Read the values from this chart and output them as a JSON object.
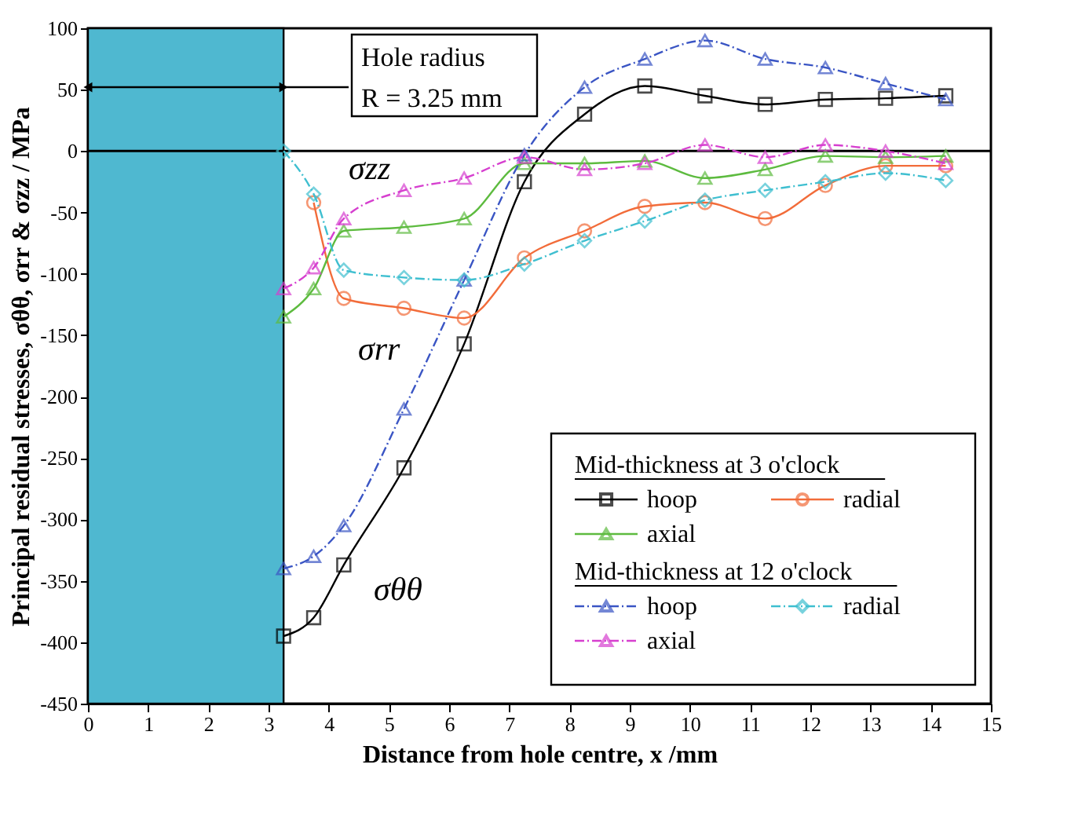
{
  "chart_data": {
    "type": "line",
    "xlabel": "Distance from hole centre, x /mm",
    "ylabel": "Principal residual stresses, σθθ, σrr & σzz / MPa",
    "x": [
      3.25,
      3.75,
      4.25,
      5.25,
      6.25,
      7.25,
      8.25,
      9.25,
      10.25,
      11.25,
      12.25,
      13.25,
      14.25
    ],
    "series": [
      {
        "name": "hoop",
        "color": "#000000",
        "marker": "square",
        "line_style": "solid",
        "values": [
          -395,
          -380,
          -337,
          -258,
          -157,
          -25,
          30,
          53,
          45,
          38,
          42,
          43,
          45
        ]
      },
      {
        "name": "radial",
        "color": "#f26c3a",
        "marker": "circle",
        "line_style": "solid",
        "values": [
          null,
          -42,
          -120,
          -128,
          -136,
          -87,
          -65,
          -45,
          -42,
          -55,
          -28,
          -12,
          -12
        ]
      },
      {
        "name": "axial",
        "color": "#5dbb3f",
        "marker": "triangle",
        "line_style": "solid",
        "values": [
          -135,
          -112,
          -65,
          -62,
          -55,
          -10,
          -10,
          -8,
          -22,
          -15,
          -4,
          -5,
          -4
        ]
      },
      {
        "name": "hoop",
        "color": "#3a55c4",
        "marker": "triangle",
        "line_style": "dashed",
        "values": [
          -340,
          -330,
          -305,
          -210,
          -105,
          -3,
          52,
          75,
          90,
          75,
          68,
          55,
          42
        ]
      },
      {
        "name": "radial",
        "color": "#3fbfd0",
        "marker": "diamond",
        "line_style": "dashed",
        "values": [
          0,
          -35,
          -97,
          -103,
          -105,
          -92,
          -73,
          -57,
          -40,
          -32,
          -25,
          -18,
          -24
        ]
      },
      {
        "name": "axial",
        "color": "#d63fcf",
        "marker": "triangle",
        "line_style": "dashed",
        "values": [
          -112,
          -95,
          -55,
          -32,
          -22,
          -5,
          -15,
          -10,
          5,
          -5,
          5,
          0,
          -10
        ]
      }
    ],
    "xlim": [
      0,
      15
    ],
    "xticks": [
      0,
      1,
      2,
      3,
      4,
      5,
      6,
      7,
      8,
      9,
      10,
      11,
      12,
      13,
      14,
      15
    ],
    "ylim": [
      -450,
      100
    ],
    "yticks": [
      -450,
      -400,
      -350,
      -300,
      -250,
      -200,
      -150,
      -100,
      -50,
      0,
      50,
      100
    ],
    "bands": [
      {
        "axis": "x",
        "from": 0,
        "to": 3.25,
        "color": "#4fb8d0"
      }
    ],
    "ref_lines": [
      {
        "axis": "y",
        "value": 0,
        "color": "#000000"
      }
    ],
    "annotations": [
      {
        "text": "Hole radius\nR = 3.25 mm",
        "x": 3.25,
        "y": 52
      },
      "Mid-thickness at 3 o'clock",
      "Mid-thickness at 12 o'clock",
      "σzz",
      "σrr",
      "σθθ"
    ],
    "legend": "bottom right",
    "grid": false
  }
}
